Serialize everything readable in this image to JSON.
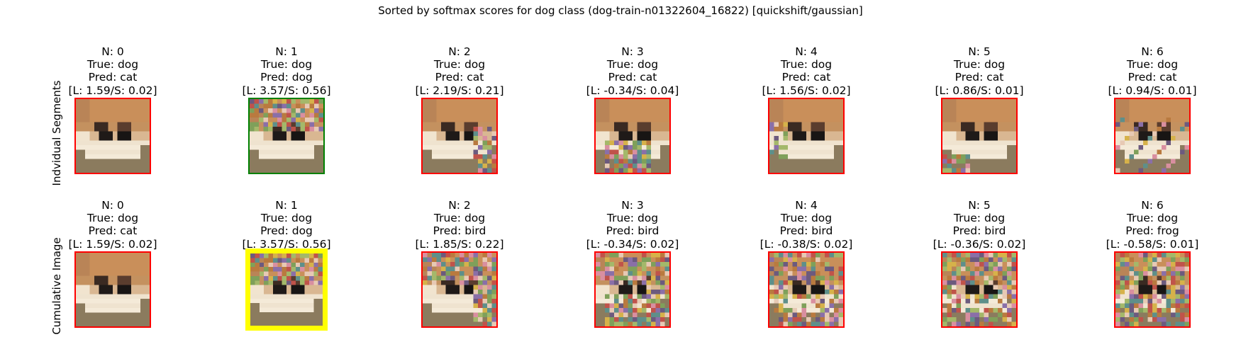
{
  "title": "Sorted by softmax scores for dog class (dog-train-n01322604_16822) [quickshift/gaussian]",
  "row_labels": [
    "Indvidual Segments",
    "Cumulative Image"
  ],
  "colors": {
    "incorrect": "#ff0000",
    "correct": "#008000",
    "best": "#ffff00"
  },
  "rows": [
    {
      "panels": [
        {
          "n": "N: 0",
          "true": "True: dog",
          "pred": "Pred: cat",
          "score": "[L: 1.59/S: 0.02]",
          "border": "incorrect",
          "noise": 0
        },
        {
          "n": "N: 1",
          "true": "True: dog",
          "pred": "Pred: dog",
          "score": "[L: 3.57/S: 0.56]",
          "border": "correct",
          "noise": 1
        },
        {
          "n": "N: 2",
          "true": "True: dog",
          "pred": "Pred: cat",
          "score": "[L: 2.19/S: 0.21]",
          "border": "incorrect",
          "noise": 2
        },
        {
          "n": "N: 3",
          "true": "True: dog",
          "pred": "Pred: cat",
          "score": "[L: -0.34/S: 0.04]",
          "border": "incorrect",
          "noise": 3
        },
        {
          "n": "N: 4",
          "true": "True: dog",
          "pred": "Pred: cat",
          "score": "[L: 1.56/S: 0.02]",
          "border": "incorrect",
          "noise": 4
        },
        {
          "n": "N: 5",
          "true": "True: dog",
          "pred": "Pred: cat",
          "score": "[L: 0.86/S: 0.01]",
          "border": "incorrect",
          "noise": 5
        },
        {
          "n": "N: 6",
          "true": "True: dog",
          "pred": "Pred: cat",
          "score": "[L: 0.94/S: 0.01]",
          "border": "incorrect",
          "noise": 6
        }
      ]
    },
    {
      "panels": [
        {
          "n": "N: 0",
          "true": "True: dog",
          "pred": "Pred: cat",
          "score": "[L: 1.59/S: 0.02]",
          "border": "incorrect",
          "noise": 0
        },
        {
          "n": "N: 1",
          "true": "True: dog",
          "pred": "Pred: dog",
          "score": "[L: 3.57/S: 0.56]",
          "border": "best",
          "noise": 1
        },
        {
          "n": "N: 2",
          "true": "True: dog",
          "pred": "Pred: bird",
          "score": "[L: 1.85/S: 0.22]",
          "border": "incorrect",
          "noise": 12
        },
        {
          "n": "N: 3",
          "true": "True: dog",
          "pred": "Pred: bird",
          "score": "[L: -0.34/S: 0.02]",
          "border": "incorrect",
          "noise": 123
        },
        {
          "n": "N: 4",
          "true": "True: dog",
          "pred": "Pred: bird",
          "score": "[L: -0.38/S: 0.02]",
          "border": "incorrect",
          "noise": 1234
        },
        {
          "n": "N: 5",
          "true": "True: dog",
          "pred": "Pred: bird",
          "score": "[L: -0.36/S: 0.02]",
          "border": "incorrect",
          "noise": 12345
        },
        {
          "n": "N: 6",
          "true": "True: dog",
          "pred": "Pred: frog",
          "score": "[L: -0.58/S: 0.01]",
          "border": "incorrect",
          "noise": 123456
        }
      ]
    }
  ]
}
